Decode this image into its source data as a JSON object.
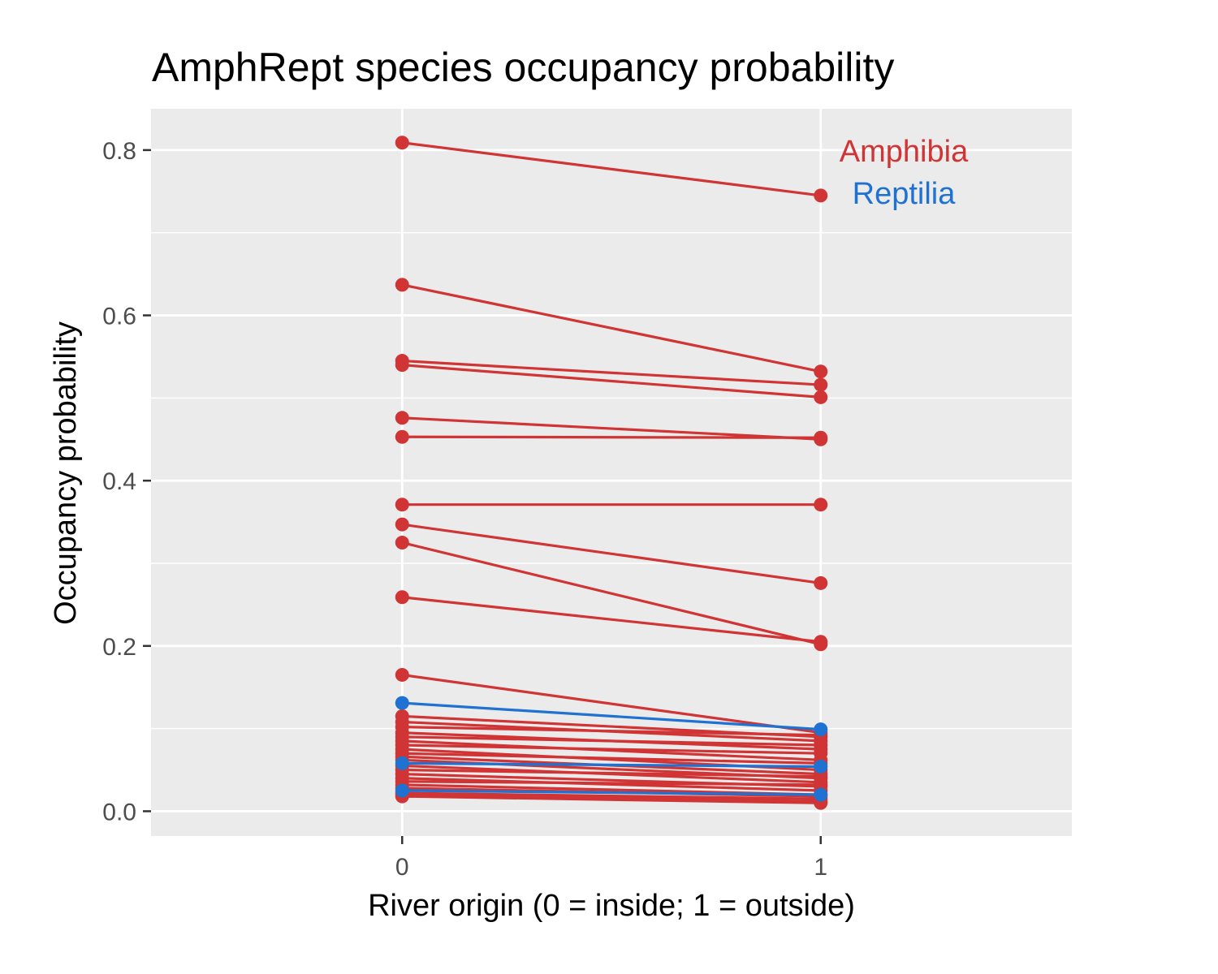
{
  "chart_data": {
    "type": "line",
    "title": "AmphRept species occupancy probability",
    "xlabel": "River origin (0 = inside; 1 = outside)",
    "ylabel": "Occupancy probability",
    "x": [
      0,
      1
    ],
    "xlim": [
      -0.6,
      1.6
    ],
    "ylim": [
      -0.03,
      0.85
    ],
    "y_ticks": [
      0.0,
      0.2,
      0.4,
      0.6,
      0.8
    ],
    "y_tick_labels": [
      "0.0",
      "0.2",
      "0.4",
      "0.6",
      "0.8"
    ],
    "x_ticks": [
      0,
      1
    ],
    "x_tick_labels": [
      "0",
      "1"
    ],
    "grid": true,
    "legend_placement": "top-right",
    "groups": [
      {
        "name": "Amphibia",
        "color": "#d03434"
      },
      {
        "name": "Reptilia",
        "color": "#1f72d1"
      }
    ],
    "series": [
      {
        "group": "Amphibia",
        "values": [
          0.809,
          0.745
        ]
      },
      {
        "group": "Amphibia",
        "values": [
          0.637,
          0.532
        ]
      },
      {
        "group": "Amphibia",
        "values": [
          0.545,
          0.516
        ]
      },
      {
        "group": "Amphibia",
        "values": [
          0.54,
          0.501
        ]
      },
      {
        "group": "Amphibia",
        "values": [
          0.476,
          0.45
        ]
      },
      {
        "group": "Amphibia",
        "values": [
          0.453,
          0.452
        ]
      },
      {
        "group": "Amphibia",
        "values": [
          0.371,
          0.371
        ]
      },
      {
        "group": "Amphibia",
        "values": [
          0.347,
          0.276
        ]
      },
      {
        "group": "Amphibia",
        "values": [
          0.325,
          0.202
        ]
      },
      {
        "group": "Amphibia",
        "values": [
          0.259,
          0.205
        ]
      },
      {
        "group": "Amphibia",
        "values": [
          0.165,
          0.095
        ]
      },
      {
        "group": "Reptilia",
        "values": [
          0.131,
          0.099
        ]
      },
      {
        "group": "Amphibia",
        "values": [
          0.115,
          0.09
        ]
      },
      {
        "group": "Amphibia",
        "values": [
          0.108,
          0.085
        ]
      },
      {
        "group": "Amphibia",
        "values": [
          0.102,
          0.092
        ]
      },
      {
        "group": "Amphibia",
        "values": [
          0.095,
          0.075
        ]
      },
      {
        "group": "Amphibia",
        "values": [
          0.09,
          0.08
        ]
      },
      {
        "group": "Amphibia",
        "values": [
          0.085,
          0.062
        ]
      },
      {
        "group": "Amphibia",
        "values": [
          0.08,
          0.07
        ]
      },
      {
        "group": "Amphibia",
        "values": [
          0.075,
          0.05
        ]
      },
      {
        "group": "Amphibia",
        "values": [
          0.07,
          0.058
        ]
      },
      {
        "group": "Amphibia",
        "values": [
          0.066,
          0.045
        ]
      },
      {
        "group": "Amphibia",
        "values": [
          0.062,
          0.04
        ]
      },
      {
        "group": "Reptilia",
        "values": [
          0.058,
          0.054
        ]
      },
      {
        "group": "Amphibia",
        "values": [
          0.055,
          0.035
        ]
      },
      {
        "group": "Amphibia",
        "values": [
          0.05,
          0.042
        ]
      },
      {
        "group": "Amphibia",
        "values": [
          0.045,
          0.03
        ]
      },
      {
        "group": "Amphibia",
        "values": [
          0.04,
          0.025
        ]
      },
      {
        "group": "Amphibia",
        "values": [
          0.036,
          0.032
        ]
      },
      {
        "group": "Amphibia",
        "values": [
          0.032,
          0.02
        ]
      },
      {
        "group": "Amphibia",
        "values": [
          0.028,
          0.018
        ]
      },
      {
        "group": "Reptilia",
        "values": [
          0.025,
          0.02
        ]
      },
      {
        "group": "Amphibia",
        "values": [
          0.022,
          0.015
        ]
      },
      {
        "group": "Amphibia",
        "values": [
          0.02,
          0.012
        ]
      },
      {
        "group": "Amphibia",
        "values": [
          0.018,
          0.01
        ]
      }
    ]
  }
}
